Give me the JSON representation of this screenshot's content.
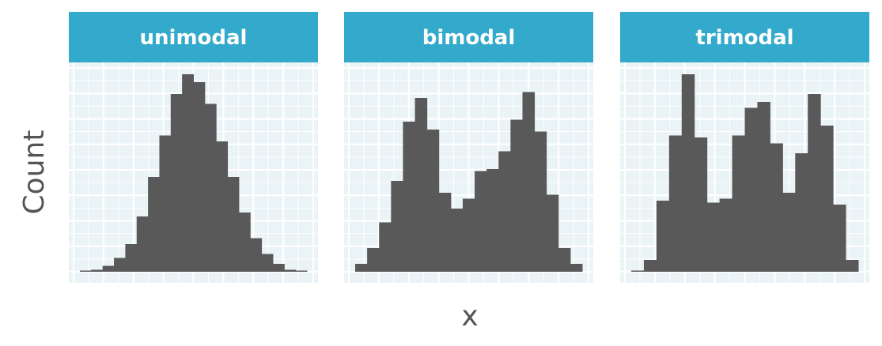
{
  "chart_data": {
    "type": "bar",
    "subtype": "histogram-facets",
    "xlabel": "x",
    "ylabel": "Count",
    "grid": true,
    "axis_tick_labels_shown": false,
    "colors": {
      "bar": "#595959",
      "panel_background": "#eaf3f6",
      "grid": "#ffffff",
      "strip": "#33a9cc",
      "strip_text": "#ffffff",
      "axis_text": "#555555"
    },
    "ylim": [
      0,
      1.0
    ],
    "panels": [
      {
        "title": "unimodal",
        "values": [
          0.0,
          0.01,
          0.03,
          0.07,
          0.14,
          0.28,
          0.48,
          0.69,
          0.9,
          1.0,
          0.96,
          0.85,
          0.66,
          0.48,
          0.3,
          0.17,
          0.09,
          0.04,
          0.01,
          0.0
        ]
      },
      {
        "title": "bimodal",
        "values": [
          0.04,
          0.12,
          0.25,
          0.46,
          0.76,
          0.88,
          0.72,
          0.4,
          0.32,
          0.37,
          0.51,
          0.52,
          0.61,
          0.77,
          0.91,
          0.71,
          0.39,
          0.12,
          0.04
        ]
      },
      {
        "title": "trimodal",
        "values": [
          0.0,
          0.06,
          0.36,
          0.69,
          1.0,
          0.68,
          0.35,
          0.37,
          0.69,
          0.83,
          0.86,
          0.65,
          0.4,
          0.6,
          0.9,
          0.74,
          0.34,
          0.06
        ]
      }
    ]
  }
}
